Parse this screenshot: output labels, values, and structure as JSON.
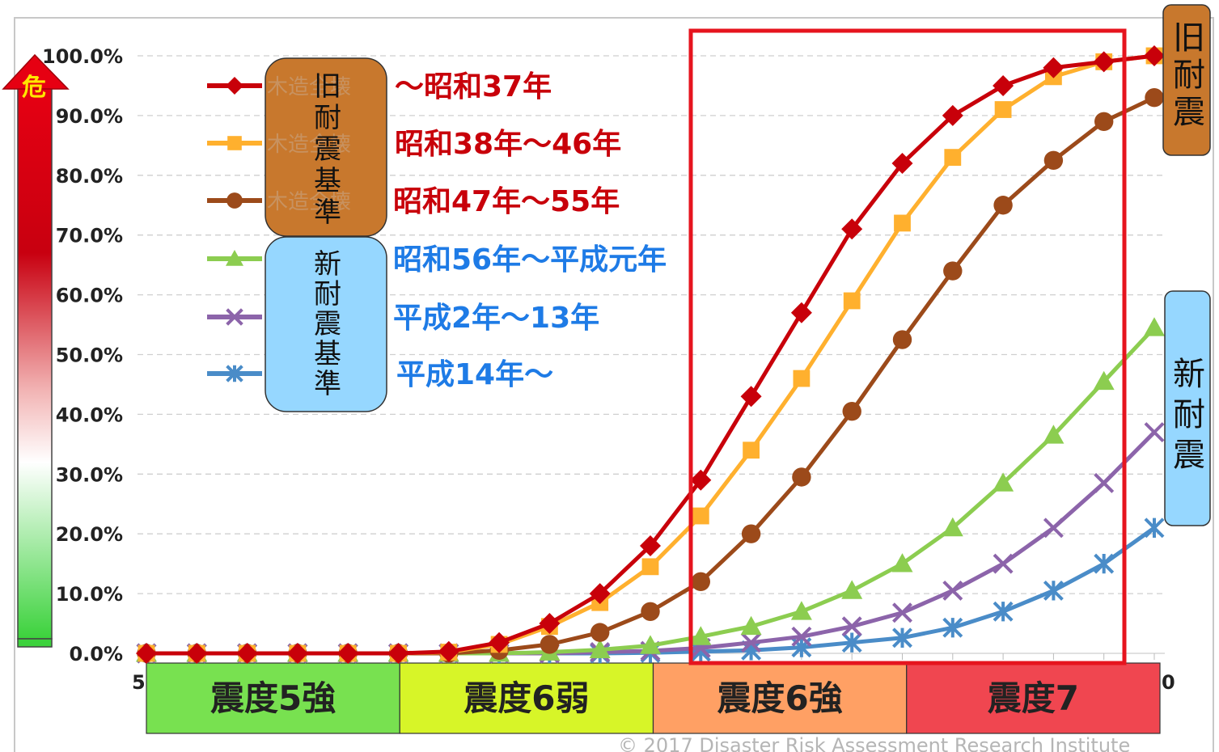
{
  "chart_data": {
    "type": "line",
    "x": [
      0,
      1,
      2,
      3,
      4,
      5,
      6,
      7,
      8,
      9,
      10,
      11,
      12,
      13,
      14,
      15,
      16,
      17,
      18,
      19,
      20
    ],
    "yticks": [
      "0.0%",
      "10.0%",
      "20.0%",
      "30.0%",
      "40.0%",
      "50.0%",
      "60.0%",
      "70.0%",
      "80.0%",
      "90.0%",
      "100.0%"
    ],
    "ylim": [
      0,
      100
    ],
    "x_partial_labels": {
      "start": "5",
      "end": "0"
    },
    "series": [
      {
        "name": "〜昭和37年",
        "color": "#c8000a",
        "marker": "diamond",
        "values": [
          0,
          0,
          0,
          0,
          0,
          0,
          0.3,
          1.8,
          5,
          10,
          18,
          29,
          43,
          57,
          71,
          82,
          90,
          95,
          98,
          99,
          100
        ]
      },
      {
        "name": "昭和38年〜46年",
        "color": "#ffb02e",
        "marker": "square",
        "values": [
          0,
          0,
          0,
          0,
          0,
          0,
          0.2,
          1.5,
          4.5,
          8.5,
          14.5,
          23,
          34,
          46,
          59,
          72,
          83,
          91,
          96.5,
          99,
          100
        ]
      },
      {
        "name": "昭和47年〜55年",
        "color": "#9c4a1a",
        "marker": "circle",
        "values": [
          0,
          0,
          0,
          0,
          0,
          0,
          0,
          0.5,
          1.5,
          3.5,
          7,
          12,
          20,
          29.5,
          40.5,
          52.5,
          64,
          75,
          82.5,
          89,
          93
        ]
      },
      {
        "name": "昭和56年〜平成元年",
        "color": "#8ccd50",
        "marker": "triangle",
        "values": [
          0,
          0,
          0,
          0,
          0,
          0,
          0,
          0,
          0.2,
          0.6,
          1.3,
          2.8,
          4.5,
          7,
          10.5,
          15,
          21,
          28.5,
          36.5,
          45.5,
          54.5
        ]
      },
      {
        "name": "平成2年〜13年",
        "color": "#8c64aa",
        "marker": "x",
        "values": [
          0,
          0,
          0,
          0,
          0,
          0,
          0,
          0,
          0,
          0.2,
          0.4,
          0.9,
          1.8,
          2.8,
          4.5,
          6.8,
          10.5,
          15,
          21,
          28.5,
          37
        ]
      },
      {
        "name": "平成14年〜",
        "color": "#4a8cc8",
        "marker": "star",
        "values": [
          0,
          0,
          0,
          0,
          0,
          0,
          0,
          0,
          0,
          0,
          0.1,
          0.3,
          0.5,
          1,
          1.8,
          2.6,
          4.3,
          7,
          10.5,
          15,
          21
        ]
      }
    ],
    "intensity_bands": [
      {
        "label": "震度5強",
        "color": "#78e150"
      },
      {
        "label": "震度6弱",
        "color": "#d7f528"
      },
      {
        "label": "震度6強",
        "color": "#ffa064"
      },
      {
        "label": "震度7",
        "color": "#f04650"
      }
    ],
    "legend_groups": [
      {
        "label": "旧耐震基準",
        "color": "#c8782d",
        "watermark": "木造全壊"
      },
      {
        "label": "新耐震基準",
        "color": "#96d7ff"
      }
    ],
    "side_labels": [
      {
        "label": "旧耐震",
        "color": "#c8782d"
      },
      {
        "label": "新耐震",
        "color": "#96d7ff"
      }
    ],
    "danger_label": "危",
    "highlight_color": "#e6141e",
    "copyright": "© 2017 Disaster Risk Assessment Research Institute"
  }
}
